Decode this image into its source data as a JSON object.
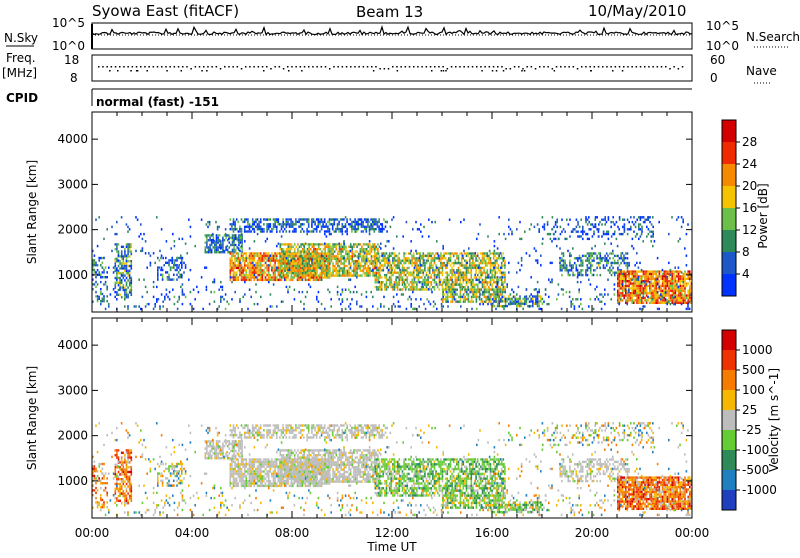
{
  "header": {
    "station": "Syowa East (fitACF)",
    "beam": "Beam 13",
    "date": "10/May/2010"
  },
  "top_panels": {
    "nsky_label": "N.Sky",
    "nsearch_label": "N.Search",
    "noise_tick_hi": "10^5",
    "noise_tick_lo": "10^0",
    "freq_label": "Freq.",
    "freq_unit": "[MHz]",
    "freq_tick_hi": "18",
    "freq_tick_lo": "8",
    "nave_label": "Nave",
    "nave_tick_hi": "60",
    "nave_tick_lo": "0",
    "cpid_label": "CPID",
    "cpid_value": "normal (fast) -151"
  },
  "chart_data": [
    {
      "type": "heatmap",
      "quantity": "power",
      "ylabel": "Slant Range [km]",
      "yticks": [
        1000,
        2000,
        3000,
        4000
      ],
      "ylim": [
        180,
        4600
      ],
      "xlim": [
        0,
        24
      ],
      "colorbar_label": "Power [dB]",
      "colorbar_ticks": [
        "28",
        "24",
        "20",
        "16",
        "12",
        "8",
        "4"
      ],
      "colors": [
        "#0033ff",
        "#1e58c8",
        "#2f8a5a",
        "#6cc04a",
        "#f5c400",
        "#f58a00",
        "#ef2a00",
        "#d40000"
      ]
    },
    {
      "type": "heatmap",
      "quantity": "velocity",
      "ylabel": "Slant Range [km]",
      "yticks": [
        1000,
        2000,
        3000,
        4000
      ],
      "ylim": [
        180,
        4600
      ],
      "xlim": [
        0,
        24
      ],
      "colorbar_label": "Velocity [m s^-1]",
      "colorbar_ticks": [
        "1000",
        "500",
        "100",
        "25",
        "-25",
        "-100",
        "-500",
        "-1000"
      ],
      "colors": [
        "#1f3fbf",
        "#1f7fbf",
        "#2e8b57",
        "#66cc33",
        "#bdbdbd",
        "#f5b700",
        "#f57c00",
        "#ef3300",
        "#d40000"
      ]
    }
  ],
  "xaxis": {
    "ticks": [
      "00:00",
      "04:00",
      "08:00",
      "12:00",
      "16:00",
      "20:00",
      "00:00"
    ],
    "label": "Time UT"
  }
}
